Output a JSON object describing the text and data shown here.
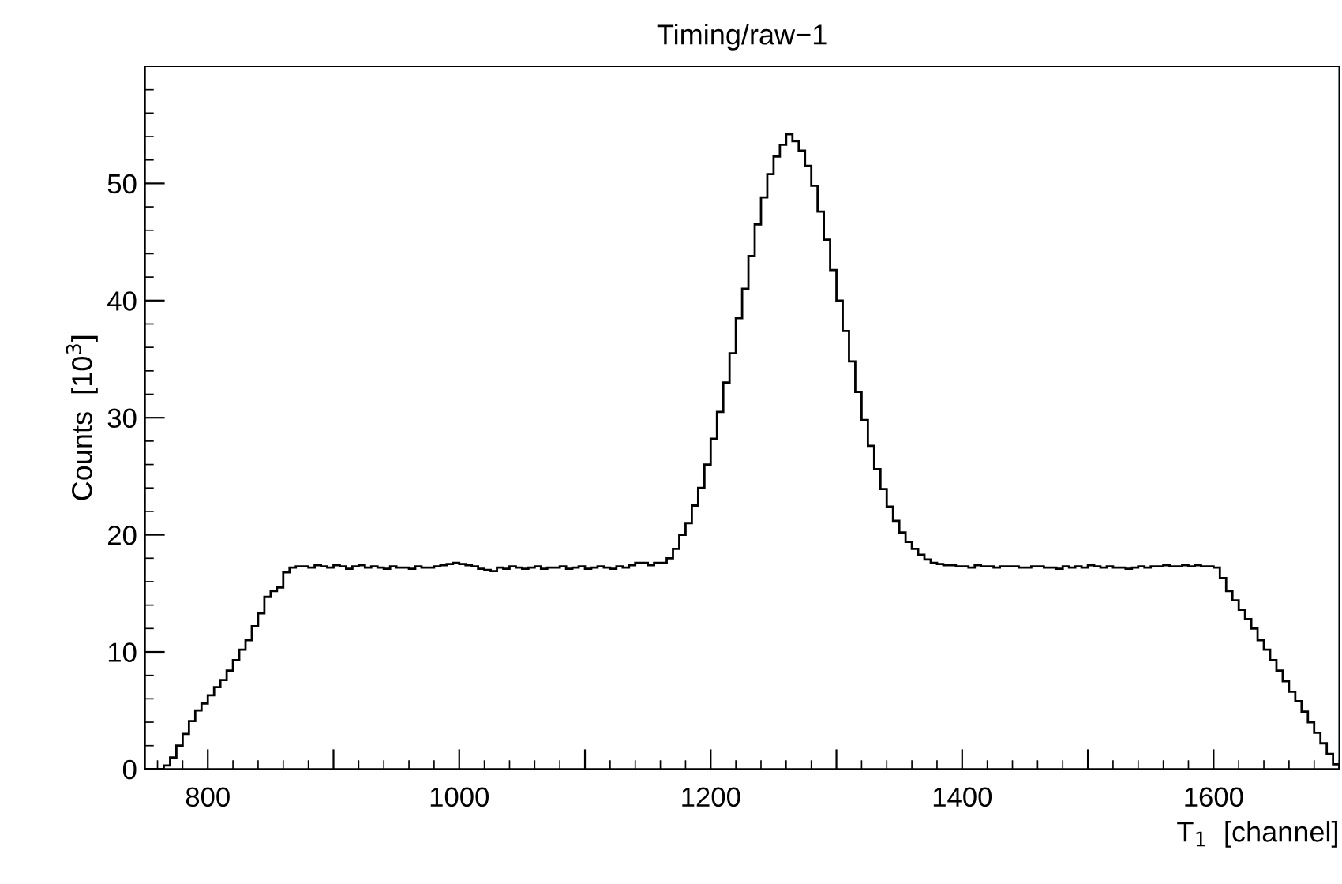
{
  "chart_data": {
    "type": "histogram",
    "title": "Timing/raw−1",
    "xlabel": "T$_{1}$  [channel]",
    "ylabel": "Counts  [10$^{3}$]",
    "color": "#000000",
    "bins": [
      750,
      755,
      760,
      765,
      770,
      775,
      780,
      785,
      790,
      795,
      800,
      805,
      810,
      815,
      820,
      825,
      830,
      835,
      840,
      845,
      850,
      855,
      860,
      865,
      870,
      875,
      880,
      885,
      890,
      895,
      900,
      905,
      910,
      915,
      920,
      925,
      930,
      935,
      940,
      945,
      950,
      955,
      960,
      965,
      970,
      975,
      980,
      985,
      990,
      995,
      1000,
      1005,
      1010,
      1015,
      1020,
      1025,
      1030,
      1035,
      1040,
      1045,
      1050,
      1055,
      1060,
      1065,
      1070,
      1075,
      1080,
      1085,
      1090,
      1095,
      1100,
      1105,
      1110,
      1115,
      1120,
      1125,
      1130,
      1135,
      1140,
      1145,
      1150,
      1155,
      1160,
      1165,
      1170,
      1175,
      1180,
      1185,
      1190,
      1195,
      1200,
      1205,
      1210,
      1215,
      1220,
      1225,
      1230,
      1235,
      1240,
      1245,
      1250,
      1255,
      1260,
      1265,
      1270,
      1275,
      1280,
      1285,
      1290,
      1295,
      1300,
      1305,
      1310,
      1315,
      1320,
      1325,
      1330,
      1335,
      1340,
      1345,
      1350,
      1355,
      1360,
      1365,
      1370,
      1375,
      1380,
      1385,
      1390,
      1395,
      1400,
      1405,
      1410,
      1415,
      1420,
      1425,
      1430,
      1435,
      1440,
      1445,
      1450,
      1455,
      1460,
      1465,
      1470,
      1475,
      1480,
      1485,
      1490,
      1495,
      1500,
      1505,
      1510,
      1515,
      1520,
      1525,
      1530,
      1535,
      1540,
      1545,
      1550,
      1555,
      1560,
      1565,
      1570,
      1575,
      1580,
      1585,
      1590,
      1595,
      1600,
      1605,
      1610,
      1615,
      1620,
      1625,
      1630,
      1635,
      1640,
      1645,
      1650,
      1655,
      1660,
      1665,
      1670,
      1675,
      1680,
      1685,
      1690,
      1695,
      1700
    ],
    "values": [
      0,
      0,
      0,
      0.3,
      1.0,
      2.0,
      3.0,
      4.1,
      5.0,
      5.6,
      6.3,
      7.0,
      7.6,
      8.4,
      9.3,
      10.2,
      11.0,
      12.2,
      13.3,
      14.7,
      15.2,
      15.5,
      16.8,
      17.2,
      17.3,
      17.3,
      17.2,
      17.4,
      17.3,
      17.2,
      17.4,
      17.3,
      17.1,
      17.3,
      17.4,
      17.2,
      17.3,
      17.2,
      17.1,
      17.3,
      17.2,
      17.2,
      17.1,
      17.3,
      17.2,
      17.2,
      17.3,
      17.4,
      17.5,
      17.6,
      17.5,
      17.4,
      17.3,
      17.1,
      17.0,
      16.9,
      17.2,
      17.1,
      17.3,
      17.2,
      17.1,
      17.2,
      17.3,
      17.1,
      17.2,
      17.2,
      17.3,
      17.1,
      17.2,
      17.3,
      17.1,
      17.2,
      17.3,
      17.2,
      17.1,
      17.3,
      17.2,
      17.4,
      17.6,
      17.6,
      17.4,
      17.6,
      17.6,
      18.0,
      18.8,
      20.0,
      21.0,
      22.5,
      24.0,
      26.0,
      28.2,
      30.5,
      33.0,
      35.5,
      38.5,
      41.0,
      43.8,
      46.5,
      48.8,
      50.8,
      52.3,
      53.3,
      54.2,
      53.6,
      52.8,
      51.5,
      49.8,
      47.6,
      45.2,
      42.6,
      40.0,
      37.4,
      34.8,
      32.2,
      29.8,
      27.6,
      25.6,
      23.9,
      22.4,
      21.2,
      20.2,
      19.4,
      18.8,
      18.3,
      17.9,
      17.6,
      17.5,
      17.4,
      17.4,
      17.3,
      17.3,
      17.2,
      17.4,
      17.3,
      17.3,
      17.2,
      17.3,
      17.3,
      17.3,
      17.2,
      17.2,
      17.3,
      17.3,
      17.2,
      17.2,
      17.1,
      17.3,
      17.2,
      17.3,
      17.2,
      17.4,
      17.3,
      17.2,
      17.3,
      17.2,
      17.2,
      17.1,
      17.2,
      17.3,
      17.2,
      17.3,
      17.3,
      17.4,
      17.3,
      17.3,
      17.4,
      17.3,
      17.4,
      17.3,
      17.3,
      17.2,
      16.3,
      15.2,
      14.4,
      13.6,
      12.8,
      12.0,
      11.0,
      10.2,
      9.3,
      8.4,
      7.5,
      6.6,
      5.8,
      4.9,
      4.0,
      3.1,
      2.2,
      1.3,
      0.4
    ],
    "xlim": [
      750,
      1700
    ],
    "ylim": [
      0,
      60
    ],
    "xticks": [
      800,
      {
        "value": 900,
        "label": null
      },
      1000,
      {
        "value": 1100,
        "label": null
      },
      1200,
      {
        "value": 1300,
        "label": null
      },
      1400,
      {
        "value": 1500,
        "label": null
      },
      1600
    ],
    "yticks": [
      0,
      10,
      20,
      30,
      40,
      50
    ],
    "grid": false,
    "legend": false
  }
}
